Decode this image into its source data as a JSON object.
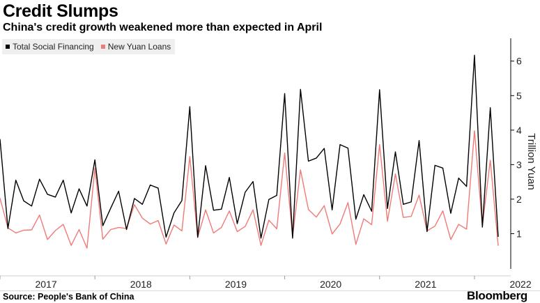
{
  "title": "Credit Slumps",
  "subtitle": "China's credit growth weakened more than expected in April",
  "source": "Source: People's Bank of China",
  "brand": "Bloomberg",
  "chart_data": {
    "type": "line",
    "title": "Credit Slumps",
    "subtitle": "China's credit growth weakened more than expected in April",
    "ylabel": "Trillion Yuan",
    "xlabel": "",
    "ylim": [
      0,
      6.6
    ],
    "y_ticks": [
      1,
      2,
      3,
      4,
      5,
      6
    ],
    "x_tick_labels": [
      "2017",
      "2018",
      "2019",
      "2020",
      "2021",
      "2022"
    ],
    "grid": false,
    "legend_position": "top-left",
    "x": [
      "2017-01",
      "2017-02",
      "2017-03",
      "2017-04",
      "2017-05",
      "2017-06",
      "2017-07",
      "2017-08",
      "2017-09",
      "2017-10",
      "2017-11",
      "2017-12",
      "2018-01",
      "2018-02",
      "2018-03",
      "2018-04",
      "2018-05",
      "2018-06",
      "2018-07",
      "2018-08",
      "2018-09",
      "2018-10",
      "2018-11",
      "2018-12",
      "2019-01",
      "2019-02",
      "2019-03",
      "2019-04",
      "2019-05",
      "2019-06",
      "2019-07",
      "2019-08",
      "2019-09",
      "2019-10",
      "2019-11",
      "2019-12",
      "2020-01",
      "2020-02",
      "2020-03",
      "2020-04",
      "2020-05",
      "2020-06",
      "2020-07",
      "2020-08",
      "2020-09",
      "2020-10",
      "2020-11",
      "2020-12",
      "2021-01",
      "2021-02",
      "2021-03",
      "2021-04",
      "2021-05",
      "2021-06",
      "2021-07",
      "2021-08",
      "2021-09",
      "2021-10",
      "2021-11",
      "2021-12",
      "2022-01",
      "2022-02",
      "2022-03",
      "2022-04"
    ],
    "series": [
      {
        "name": "Total Social Financing",
        "color": "#000000",
        "values": [
          3.74,
          1.15,
          2.55,
          1.95,
          1.8,
          2.58,
          2.14,
          2.06,
          2.55,
          1.6,
          2.3,
          1.8,
          3.14,
          1.23,
          1.74,
          2.23,
          1.12,
          2.02,
          1.85,
          2.41,
          2.32,
          0.9,
          1.6,
          1.96,
          4.68,
          0.9,
          2.97,
          1.68,
          1.71,
          2.63,
          1.29,
          2.2,
          2.51,
          0.87,
          1.99,
          2.11,
          5.06,
          0.87,
          5.18,
          3.1,
          3.19,
          3.47,
          1.69,
          3.58,
          3.48,
          1.42,
          2.13,
          1.65,
          5.17,
          1.73,
          3.37,
          1.85,
          1.92,
          3.7,
          1.06,
          2.98,
          2.9,
          1.59,
          2.61,
          2.37,
          6.17,
          1.19,
          4.65,
          0.91
        ]
      },
      {
        "name": "New Yuan Loans",
        "color": "#f07a78",
        "values": [
          2.03,
          1.17,
          1.02,
          1.1,
          1.11,
          1.54,
          0.83,
          1.09,
          1.27,
          0.66,
          1.12,
          0.58,
          2.9,
          0.84,
          1.12,
          1.18,
          1.15,
          1.84,
          1.45,
          1.28,
          1.38,
          0.7,
          1.25,
          1.08,
          3.23,
          0.89,
          1.69,
          1.02,
          1.18,
          1.66,
          1.06,
          1.21,
          1.69,
          0.66,
          1.39,
          1.14,
          3.34,
          0.91,
          2.85,
          1.7,
          1.48,
          1.81,
          0.99,
          1.28,
          1.9,
          0.69,
          1.43,
          1.26,
          3.58,
          1.36,
          2.73,
          1.47,
          1.5,
          2.12,
          1.08,
          1.22,
          1.66,
          0.83,
          1.27,
          1.13,
          3.98,
          1.23,
          3.13,
          0.65
        ]
      }
    ]
  }
}
